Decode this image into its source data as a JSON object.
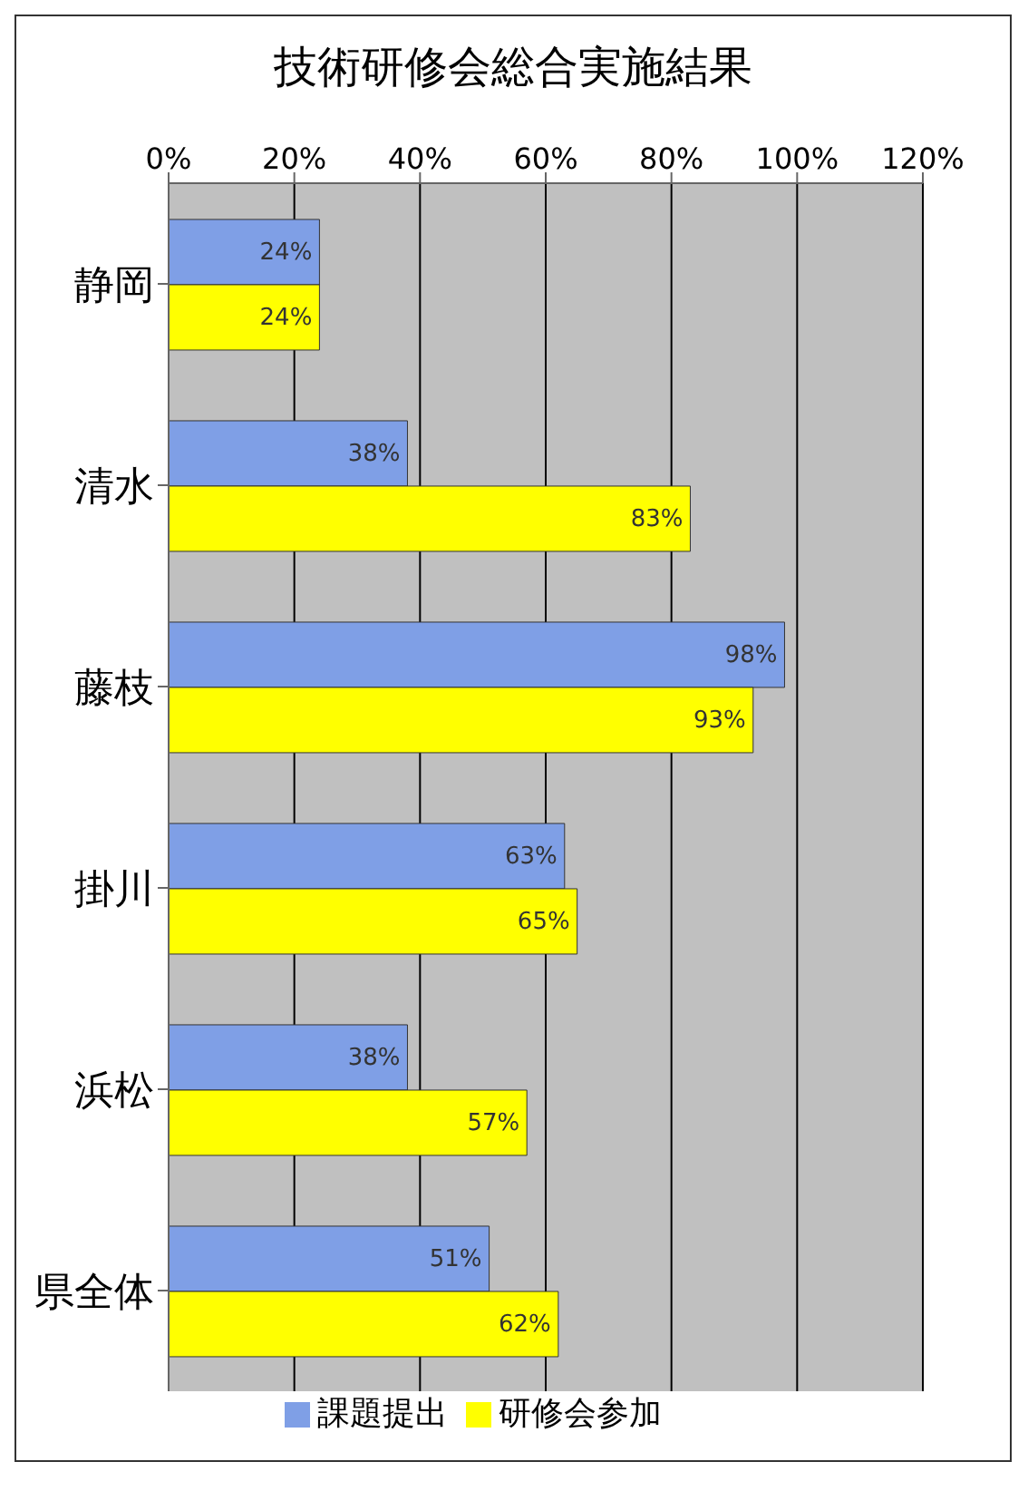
{
  "chart_data": {
    "type": "bar",
    "orientation": "horizontal",
    "title": "技術研修会総合実施結果",
    "categories": [
      "静岡",
      "清水",
      "藤枝",
      "掛川",
      "浜松",
      "県全体"
    ],
    "series": [
      {
        "name": "課題提出",
        "color": "#7f9fe6",
        "values": [
          24,
          38,
          98,
          63,
          38,
          51
        ],
        "value_labels": [
          "24%",
          "38%",
          "98%",
          "63%",
          "38%",
          "51%"
        ]
      },
      {
        "name": "研修会参加",
        "color": "#ffff00",
        "values": [
          24,
          83,
          93,
          65,
          57,
          62
        ],
        "value_labels": [
          "24%",
          "83%",
          "93%",
          "65%",
          "57%",
          "62%"
        ]
      }
    ],
    "xlim": [
      0,
      120
    ],
    "xticks": [
      {
        "value": 0,
        "label": "0%"
      },
      {
        "value": 20,
        "label": "20%"
      },
      {
        "value": 40,
        "label": "40%"
      },
      {
        "value": 60,
        "label": "60%"
      },
      {
        "value": 80,
        "label": "80%"
      },
      {
        "value": 100,
        "label": "100%"
      },
      {
        "value": 120,
        "label": "120%"
      }
    ],
    "grid": "x",
    "legend": "bottom"
  }
}
